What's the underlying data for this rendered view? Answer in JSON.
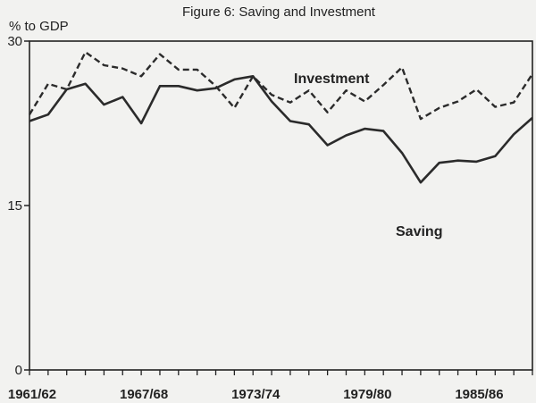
{
  "chart_data": {
    "type": "line",
    "title": "Figure 6: Saving and Investment",
    "ylabel": "% to GDP",
    "xlabel": "",
    "ylim": [
      0,
      30
    ],
    "yticks": [
      0,
      15,
      30
    ],
    "grid": false,
    "legend": "none",
    "x_tick_labels": [
      "1961/62",
      "1967/68",
      "1973/74",
      "1979/80",
      "1985/86"
    ],
    "x_tick_indices": [
      0,
      6,
      12,
      18,
      24
    ],
    "categories": [
      "1961/62",
      "1962/63",
      "1963/64",
      "1964/65",
      "1965/66",
      "1966/67",
      "1967/68",
      "1968/69",
      "1969/70",
      "1970/71",
      "1971/72",
      "1972/73",
      "1973/74",
      "1974/75",
      "1975/76",
      "1976/77",
      "1977/78",
      "1978/79",
      "1979/80",
      "1980/81",
      "1981/82",
      "1982/83",
      "1983/84",
      "1984/85",
      "1985/86",
      "1986/87",
      "1987/88",
      "1988/89"
    ],
    "series": [
      {
        "name": "Investment",
        "style": "dashed",
        "values": [
          23.3,
          26.1,
          25.6,
          29.0,
          27.8,
          27.5,
          26.8,
          28.8,
          27.4,
          27.4,
          25.9,
          23.9,
          26.8,
          25.1,
          24.4,
          25.5,
          23.5,
          25.5,
          24.5,
          26.0,
          27.6,
          22.9,
          23.9,
          24.5,
          25.6,
          24.0,
          24.4,
          27.0
        ]
      },
      {
        "name": "Saving",
        "style": "solid",
        "values": [
          22.7,
          23.3,
          25.6,
          26.1,
          24.2,
          24.9,
          22.5,
          25.9,
          25.9,
          25.5,
          25.7,
          26.5,
          26.8,
          24.5,
          22.7,
          22.4,
          20.5,
          21.4,
          22.0,
          21.8,
          19.8,
          17.1,
          18.9,
          19.1,
          19.0,
          19.5,
          21.5,
          23.0
        ]
      }
    ],
    "annotations": [
      {
        "text": "Investment",
        "series": "Investment"
      },
      {
        "text": "Saving",
        "series": "Saving"
      }
    ],
    "colors": {
      "line": "#2b2b2b",
      "frame": "#222222",
      "background": "#f2f2f0"
    }
  }
}
